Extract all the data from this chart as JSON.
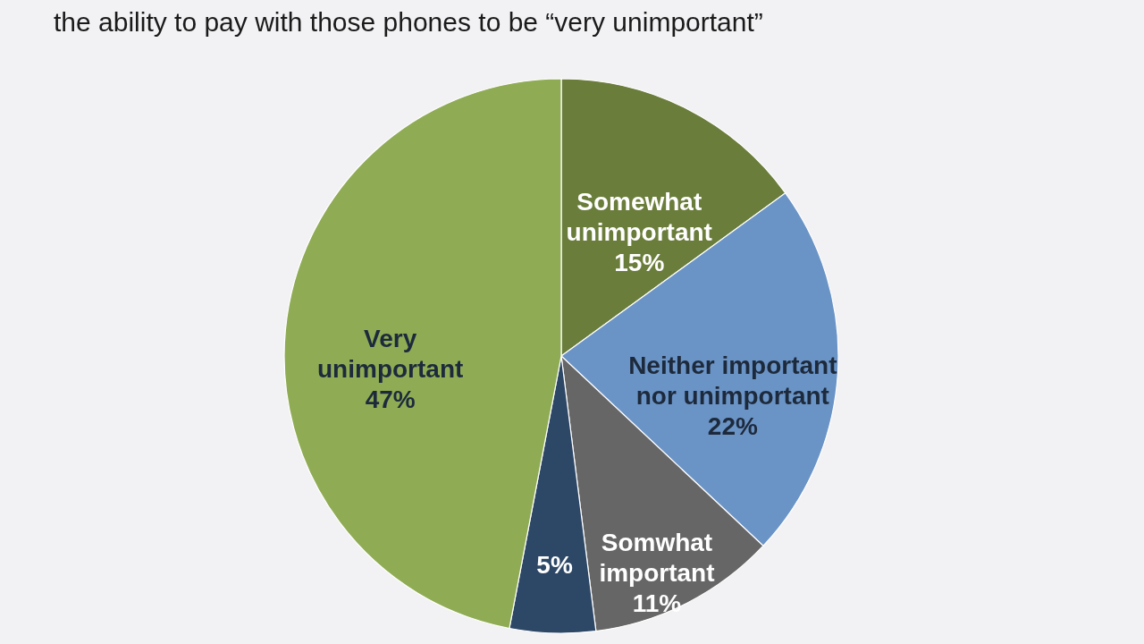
{
  "chart_data": {
    "type": "pie",
    "title": "the ability to pay with those phones to be “very unimportant”",
    "categories": [
      "Somewhat unimportant",
      "Neither important nor unimportant",
      "Somwhat important",
      null,
      "Very unimportant"
    ],
    "values": [
      15,
      22,
      11,
      5,
      47
    ],
    "colors": [
      "#6a7d3b",
      "#6b94c6",
      "#666666",
      "#2d4766",
      "#8fac55"
    ],
    "value_labels": [
      "15%",
      "22%",
      "11%",
      "5%",
      "47%"
    ]
  }
}
